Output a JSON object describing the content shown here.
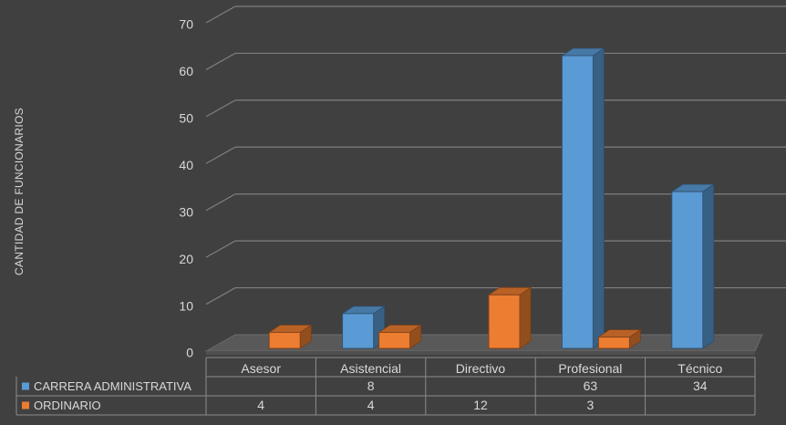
{
  "chart_data": {
    "type": "bar",
    "ylabel": "CANTIDAD DE FUNCIONARIOS",
    "ylim": [
      0,
      70
    ],
    "yticks": [
      0,
      10,
      20,
      30,
      40,
      50,
      60,
      70
    ],
    "categories": [
      "Asesor",
      "Asistencial",
      "Directivo",
      "Profesional",
      "Técnico"
    ],
    "series": [
      {
        "name": "CARRERA ADMINISTRATIVA",
        "color": "#5b9bd5",
        "values": [
          null,
          8,
          null,
          63,
          34
        ],
        "labels": [
          "",
          "8",
          "",
          "63",
          "34"
        ]
      },
      {
        "name": "ORDINARIO",
        "color": "#ed7d31",
        "values": [
          4,
          4,
          12,
          3,
          null
        ],
        "labels": [
          "4",
          "4",
          "12",
          "3",
          ""
        ]
      }
    ],
    "legend": "data-table",
    "grid": true,
    "style": "3d-clustered-column"
  }
}
